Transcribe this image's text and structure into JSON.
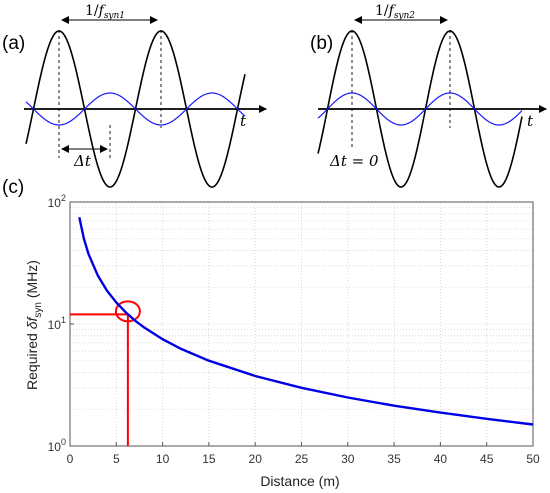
{
  "panels": {
    "a": {
      "label": "(a)",
      "period_label_prefix": "1/",
      "period_label_f": "f",
      "period_label_sub": "syn1",
      "delta_label": "Δt",
      "axis_var": "t"
    },
    "b": {
      "label": "(b)",
      "period_label_prefix": "1/",
      "period_label_f": "f",
      "period_label_sub": "syn2",
      "delta_label": "Δt = 0",
      "axis_var": "t"
    },
    "c": {
      "label": "(c)"
    }
  },
  "colors": {
    "black_wave": "#000000",
    "blue_wave": "#1a1aff",
    "curve": "#0000e6",
    "marker": "#ff0000",
    "grid": "#d0d0d0",
    "axis": "#555555"
  },
  "chart_data": {
    "type": "line",
    "xlabel": "Distance (m)",
    "ylabel_main": "Required ",
    "ylabel_symbol": "δf",
    "ylabel_sub": "syn",
    "ylabel_unit": "  (MHz)",
    "xlim": [
      0,
      50
    ],
    "ylim": [
      1,
      100
    ],
    "yscale": "log",
    "grid": true,
    "x_ticks": [
      0,
      5,
      10,
      15,
      20,
      25,
      30,
      35,
      40,
      45,
      50
    ],
    "y_ticks": [
      {
        "value": 1,
        "base": "10",
        "exp": "0"
      },
      {
        "value": 10,
        "base": "10",
        "exp": "1"
      },
      {
        "value": 100,
        "base": "10",
        "exp": "2"
      }
    ],
    "series": [
      {
        "x": [
          1,
          1.5,
          2,
          3,
          4,
          5,
          6,
          6.25,
          7,
          8,
          10,
          12,
          15,
          20,
          25,
          30,
          35,
          40,
          45,
          50
        ],
        "y": [
          75,
          50,
          37.5,
          25,
          18.75,
          15,
          12.5,
          12,
          10.7,
          9.38,
          7.5,
          6.25,
          5,
          3.75,
          3,
          2.5,
          2.14,
          1.88,
          1.67,
          1.5
        ]
      }
    ],
    "marker_point": {
      "x": 6.25,
      "y": 12
    }
  }
}
